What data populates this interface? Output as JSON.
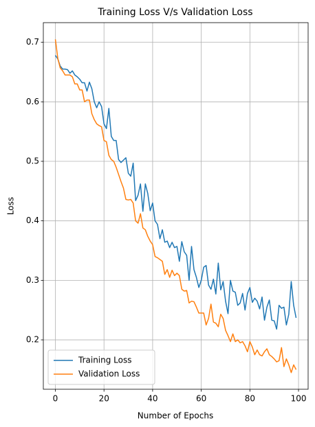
{
  "chart_data": {
    "type": "line",
    "title": "Training Loss V/s Validation Loss",
    "xlabel": "Number of Epochs",
    "ylabel": "Loss",
    "x": [
      0,
      1,
      2,
      3,
      4,
      5,
      6,
      7,
      8,
      9,
      10,
      11,
      12,
      13,
      14,
      15,
      16,
      17,
      18,
      19,
      20,
      21,
      22,
      23,
      24,
      25,
      26,
      27,
      28,
      29,
      30,
      31,
      32,
      33,
      34,
      35,
      36,
      37,
      38,
      39,
      40,
      41,
      42,
      43,
      44,
      45,
      46,
      47,
      48,
      49,
      50,
      51,
      52,
      53,
      54,
      55,
      56,
      57,
      58,
      59,
      60,
      61,
      62,
      63,
      64,
      65,
      66,
      67,
      68,
      69,
      70,
      71,
      72,
      73,
      74,
      75,
      76,
      77,
      78,
      79,
      80,
      81,
      82,
      83,
      84,
      85,
      86,
      87,
      88,
      89,
      90,
      91,
      92,
      93,
      94,
      95,
      96,
      97,
      98,
      99
    ],
    "series": [
      {
        "name": "Training Loss",
        "color": "#1f77b4",
        "values": [
          0.678,
          0.672,
          0.66,
          0.655,
          0.655,
          0.654,
          0.648,
          0.652,
          0.645,
          0.642,
          0.638,
          0.632,
          0.632,
          0.618,
          0.633,
          0.622,
          0.6,
          0.59,
          0.6,
          0.592,
          0.563,
          0.555,
          0.589,
          0.542,
          0.535,
          0.535,
          0.503,
          0.498,
          0.502,
          0.506,
          0.48,
          0.475,
          0.497,
          0.434,
          0.443,
          0.462,
          0.416,
          0.462,
          0.446,
          0.417,
          0.43,
          0.4,
          0.394,
          0.37,
          0.385,
          0.364,
          0.366,
          0.355,
          0.364,
          0.355,
          0.357,
          0.332,
          0.365,
          0.348,
          0.342,
          0.3,
          0.357,
          0.318,
          0.305,
          0.288,
          0.3,
          0.322,
          0.325,
          0.292,
          0.285,
          0.302,
          0.277,
          0.329,
          0.284,
          0.298,
          0.265,
          0.244,
          0.3,
          0.282,
          0.28,
          0.258,
          0.262,
          0.278,
          0.25,
          0.278,
          0.288,
          0.263,
          0.27,
          0.265,
          0.252,
          0.272,
          0.233,
          0.255,
          0.267,
          0.233,
          0.232,
          0.218,
          0.258,
          0.253,
          0.255,
          0.225,
          0.243,
          0.298,
          0.258,
          0.237
        ]
      },
      {
        "name": "Validation Loss",
        "color": "#ff7f0e",
        "values": [
          0.705,
          0.673,
          0.657,
          0.652,
          0.645,
          0.645,
          0.645,
          0.642,
          0.63,
          0.63,
          0.62,
          0.62,
          0.6,
          0.603,
          0.603,
          0.58,
          0.57,
          0.563,
          0.56,
          0.558,
          0.535,
          0.533,
          0.51,
          0.503,
          0.5,
          0.49,
          0.478,
          0.466,
          0.455,
          0.436,
          0.435,
          0.436,
          0.43,
          0.4,
          0.396,
          0.412,
          0.388,
          0.385,
          0.374,
          0.366,
          0.36,
          0.34,
          0.338,
          0.335,
          0.332,
          0.31,
          0.318,
          0.305,
          0.317,
          0.308,
          0.312,
          0.308,
          0.285,
          0.282,
          0.283,
          0.262,
          0.265,
          0.264,
          0.255,
          0.245,
          0.245,
          0.245,
          0.225,
          0.236,
          0.26,
          0.23,
          0.228,
          0.222,
          0.243,
          0.236,
          0.216,
          0.207,
          0.197,
          0.21,
          0.197,
          0.2,
          0.195,
          0.197,
          0.19,
          0.18,
          0.197,
          0.188,
          0.175,
          0.183,
          0.175,
          0.173,
          0.18,
          0.185,
          0.175,
          0.172,
          0.168,
          0.163,
          0.165,
          0.187,
          0.155,
          0.168,
          0.158,
          0.145,
          0.158,
          0.15
        ]
      }
    ],
    "xlim": [
      -4.95,
      103.95
    ],
    "xticks": [
      0,
      20,
      40,
      60,
      80,
      100
    ],
    "ylim": [
      0.117,
      0.733
    ],
    "yticks": [
      0.2,
      0.3,
      0.4,
      0.5,
      0.6,
      0.7
    ],
    "grid": true,
    "legend": "lower left"
  }
}
